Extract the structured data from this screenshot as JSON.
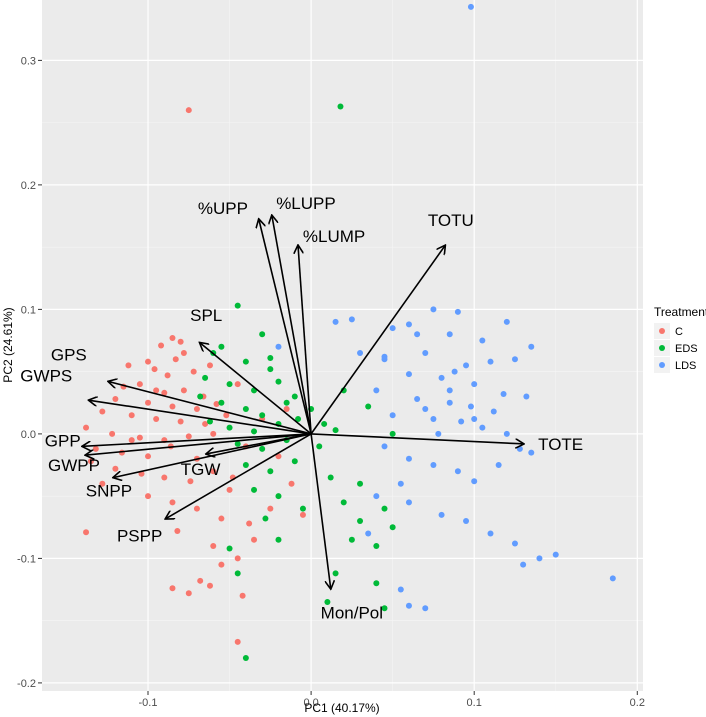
{
  "chart_data": {
    "type": "scatter",
    "title": "",
    "xlabel": "PC1 (40.17%)",
    "ylabel": "PC2 (24.61%)",
    "xlim": [
      -0.165,
      0.2035
    ],
    "ylim": [
      -0.2065,
      0.3485
    ],
    "xticks": [
      -0.1,
      0.0,
      0.1,
      0.2
    ],
    "xtick_labels": [
      "-0.1",
      "0.0",
      "0.1",
      "0.2"
    ],
    "yticks": [
      -0.2,
      -0.1,
      0.0,
      0.1,
      0.2,
      0.3
    ],
    "ytick_labels": [
      "-0.2",
      "-0.1",
      "0.0",
      "0.1",
      "0.2",
      "0.3"
    ],
    "grid": true,
    "legend": {
      "title": "Treatment",
      "position": "right",
      "entries": [
        {
          "label": "C",
          "color": "#F8766D"
        },
        {
          "label": "EDS",
          "color": "#00BA38"
        },
        {
          "label": "LDS",
          "color": "#619CFF"
        }
      ]
    },
    "series": [
      {
        "name": "C",
        "color": "#F8766D",
        "points": [
          [
            -0.075,
            0.26
          ],
          [
            -0.085,
            0.077
          ],
          [
            -0.08,
            0.074
          ],
          [
            -0.092,
            0.071
          ],
          [
            -0.078,
            0.065
          ],
          [
            -0.1,
            0.058
          ],
          [
            -0.083,
            0.06
          ],
          [
            -0.096,
            0.052
          ],
          [
            -0.072,
            0.05
          ],
          [
            -0.062,
            0.055
          ],
          [
            -0.088,
            0.047
          ],
          [
            -0.105,
            0.04
          ],
          [
            -0.115,
            0.038
          ],
          [
            -0.09,
            0.033
          ],
          [
            -0.078,
            0.035
          ],
          [
            -0.066,
            0.03
          ],
          [
            -0.12,
            0.028
          ],
          [
            -0.1,
            0.025
          ],
          [
            -0.085,
            0.022
          ],
          [
            -0.07,
            0.02
          ],
          [
            -0.058,
            0.024
          ],
          [
            -0.128,
            0.018
          ],
          [
            -0.11,
            0.015
          ],
          [
            -0.095,
            0.012
          ],
          [
            -0.08,
            0.01
          ],
          [
            -0.065,
            0.008
          ],
          [
            -0.138,
            0.005
          ],
          [
            -0.122,
            0.0
          ],
          [
            -0.105,
            -0.003
          ],
          [
            -0.09,
            -0.005
          ],
          [
            -0.075,
            -0.002
          ],
          [
            -0.06,
            0.0
          ],
          [
            -0.132,
            -0.012
          ],
          [
            -0.116,
            -0.015
          ],
          [
            -0.1,
            -0.018
          ],
          [
            -0.086,
            -0.01
          ],
          [
            -0.07,
            -0.02
          ],
          [
            -0.135,
            -0.022
          ],
          [
            -0.12,
            -0.028
          ],
          [
            -0.104,
            -0.032
          ],
          [
            -0.09,
            -0.035
          ],
          [
            -0.074,
            -0.038
          ],
          [
            -0.06,
            -0.03
          ],
          [
            -0.05,
            -0.045
          ],
          [
            -0.128,
            -0.04
          ],
          [
            -0.1,
            -0.05
          ],
          [
            -0.085,
            -0.055
          ],
          [
            -0.07,
            -0.06
          ],
          [
            -0.055,
            -0.068
          ],
          [
            -0.038,
            -0.072
          ],
          [
            -0.138,
            -0.079
          ],
          [
            -0.082,
            -0.078
          ],
          [
            -0.06,
            -0.09
          ],
          [
            -0.045,
            -0.1
          ],
          [
            -0.035,
            -0.085
          ],
          [
            -0.068,
            -0.118
          ],
          [
            -0.085,
            -0.124
          ],
          [
            -0.075,
            -0.128
          ],
          [
            -0.062,
            -0.122
          ],
          [
            -0.042,
            -0.13
          ],
          [
            -0.045,
            -0.167
          ],
          [
            -0.055,
            -0.105
          ],
          [
            -0.025,
            -0.06
          ],
          [
            -0.02,
            -0.018
          ],
          [
            -0.03,
            0.012
          ],
          [
            -0.015,
            0.02
          ],
          [
            -0.012,
            -0.04
          ],
          [
            -0.005,
            -0.065
          ],
          [
            -0.112,
            0.055
          ],
          [
            -0.095,
            0.035
          ],
          [
            -0.045,
            0.04
          ],
          [
            -0.052,
            0.015
          ],
          [
            -0.04,
            -0.01
          ],
          [
            -0.11,
            -0.005
          ],
          [
            -0.048,
            -0.035
          ]
        ]
      },
      {
        "name": "EDS",
        "color": "#00BA38",
        "points": [
          [
            0.018,
            0.263
          ],
          [
            -0.045,
            0.103
          ],
          [
            -0.03,
            0.08
          ],
          [
            -0.06,
            0.065
          ],
          [
            -0.055,
            0.07
          ],
          [
            -0.04,
            0.058
          ],
          [
            -0.025,
            0.052
          ],
          [
            -0.065,
            0.045
          ],
          [
            -0.05,
            0.04
          ],
          [
            -0.035,
            0.035
          ],
          [
            -0.02,
            0.042
          ],
          [
            -0.01,
            0.03
          ],
          [
            -0.068,
            0.03
          ],
          [
            -0.055,
            0.025
          ],
          [
            -0.04,
            0.02
          ],
          [
            -0.03,
            0.015
          ],
          [
            -0.015,
            0.025
          ],
          [
            0.0,
            0.02
          ],
          [
            -0.062,
            0.01
          ],
          [
            -0.05,
            0.005
          ],
          [
            -0.035,
            0.002
          ],
          [
            -0.02,
            0.008
          ],
          [
            -0.008,
            0.012
          ],
          [
            0.008,
            0.008
          ],
          [
            -0.045,
            -0.008
          ],
          [
            -0.03,
            -0.012
          ],
          [
            -0.015,
            -0.005
          ],
          [
            0.005,
            -0.01
          ],
          [
            -0.04,
            -0.025
          ],
          [
            -0.025,
            -0.03
          ],
          [
            -0.01,
            -0.022
          ],
          [
            0.012,
            -0.035
          ],
          [
            -0.035,
            -0.045
          ],
          [
            -0.02,
            -0.05
          ],
          [
            -0.005,
            -0.06
          ],
          [
            0.02,
            -0.055
          ],
          [
            0.03,
            -0.07
          ],
          [
            0.045,
            -0.06
          ],
          [
            0.025,
            -0.085
          ],
          [
            0.04,
            -0.09
          ],
          [
            0.015,
            -0.112
          ],
          [
            0.04,
            -0.12
          ],
          [
            -0.045,
            -0.112
          ],
          [
            0.01,
            -0.135
          ],
          [
            0.045,
            -0.14
          ],
          [
            -0.04,
            -0.18
          ],
          [
            -0.05,
            -0.092
          ],
          [
            -0.028,
            -0.068
          ],
          [
            0.02,
            0.035
          ],
          [
            0.035,
            0.022
          ],
          [
            0.05,
            0.0
          ],
          [
            -0.025,
            0.061
          ],
          [
            0.015,
            0.003
          ],
          [
            0.03,
            -0.04
          ],
          [
            -0.02,
            -0.085
          ],
          [
            0.05,
            -0.075
          ]
        ]
      },
      {
        "name": "LDS",
        "color": "#619CFF",
        "points": [
          [
            0.098,
            0.343
          ],
          [
            -0.02,
            0.07
          ],
          [
            0.015,
            0.09
          ],
          [
            0.025,
            0.092
          ],
          [
            0.05,
            0.085
          ],
          [
            0.06,
            0.088
          ],
          [
            0.075,
            0.1
          ],
          [
            0.09,
            0.098
          ],
          [
            0.12,
            0.09
          ],
          [
            0.135,
            0.07
          ],
          [
            0.065,
            0.08
          ],
          [
            0.085,
            0.08
          ],
          [
            0.105,
            0.075
          ],
          [
            0.03,
            0.065
          ],
          [
            0.045,
            0.062
          ],
          [
            0.07,
            0.065
          ],
          [
            0.095,
            0.055
          ],
          [
            0.125,
            0.06
          ],
          [
            0.11,
            0.058
          ],
          [
            0.06,
            0.048
          ],
          [
            0.08,
            0.045
          ],
          [
            0.1,
            0.04
          ],
          [
            0.118,
            0.032
          ],
          [
            0.132,
            0.03
          ],
          [
            0.04,
            0.035
          ],
          [
            0.065,
            0.028
          ],
          [
            0.085,
            0.025
          ],
          [
            0.098,
            0.022
          ],
          [
            0.112,
            0.018
          ],
          [
            0.05,
            0.015
          ],
          [
            0.075,
            0.012
          ],
          [
            0.092,
            0.01
          ],
          [
            0.105,
            0.005
          ],
          [
            0.12,
            0.0
          ],
          [
            0.128,
            -0.012
          ],
          [
            0.135,
            -0.015
          ],
          [
            0.045,
            -0.01
          ],
          [
            0.06,
            -0.02
          ],
          [
            0.075,
            -0.025
          ],
          [
            0.09,
            -0.03
          ],
          [
            0.1,
            -0.038
          ],
          [
            0.115,
            -0.025
          ],
          [
            0.06,
            -0.055
          ],
          [
            0.08,
            -0.065
          ],
          [
            0.095,
            -0.07
          ],
          [
            0.11,
            -0.08
          ],
          [
            0.125,
            -0.088
          ],
          [
            0.14,
            -0.1
          ],
          [
            0.15,
            -0.097
          ],
          [
            0.13,
            -0.105
          ],
          [
            0.185,
            -0.116
          ],
          [
            0.06,
            -0.138
          ],
          [
            0.07,
            -0.14
          ],
          [
            0.055,
            -0.125
          ],
          [
            0.04,
            -0.05
          ],
          [
            0.035,
            -0.08
          ],
          [
            0.085,
            0.035
          ],
          [
            0.1,
            0.012
          ],
          [
            0.055,
            -0.04
          ],
          [
            0.078,
            0.0
          ],
          [
            0.045,
            0.06
          ],
          [
            0.07,
            0.02
          ],
          [
            0.088,
            0.05
          ]
        ]
      }
    ],
    "loadings": [
      {
        "label": "SPL",
        "x": -0.068,
        "y": 0.073
      },
      {
        "label": "%UPP",
        "x": -0.032,
        "y": 0.172
      },
      {
        "label": "%LUPP",
        "x": -0.024,
        "y": 0.175
      },
      {
        "label": "%LUMP",
        "x": -0.008,
        "y": 0.151
      },
      {
        "label": "TOTU",
        "x": 0.082,
        "y": 0.151
      },
      {
        "label": "GPS",
        "x": -0.124,
        "y": 0.042
      },
      {
        "label": "GWPS",
        "x": -0.136,
        "y": 0.027
      },
      {
        "label": "GPP",
        "x": -0.14,
        "y": -0.01
      },
      {
        "label": "GWPP",
        "x": -0.138,
        "y": -0.017
      },
      {
        "label": "SNPP",
        "x": -0.121,
        "y": -0.035
      },
      {
        "label": "PSPP",
        "x": -0.089,
        "y": -0.068
      },
      {
        "label": "TGW",
        "x": -0.064,
        "y": -0.016
      },
      {
        "label": "TOTE",
        "x": 0.13,
        "y": -0.008
      },
      {
        "label": "Mon/Pol",
        "x": 0.012,
        "y": -0.124
      }
    ]
  }
}
